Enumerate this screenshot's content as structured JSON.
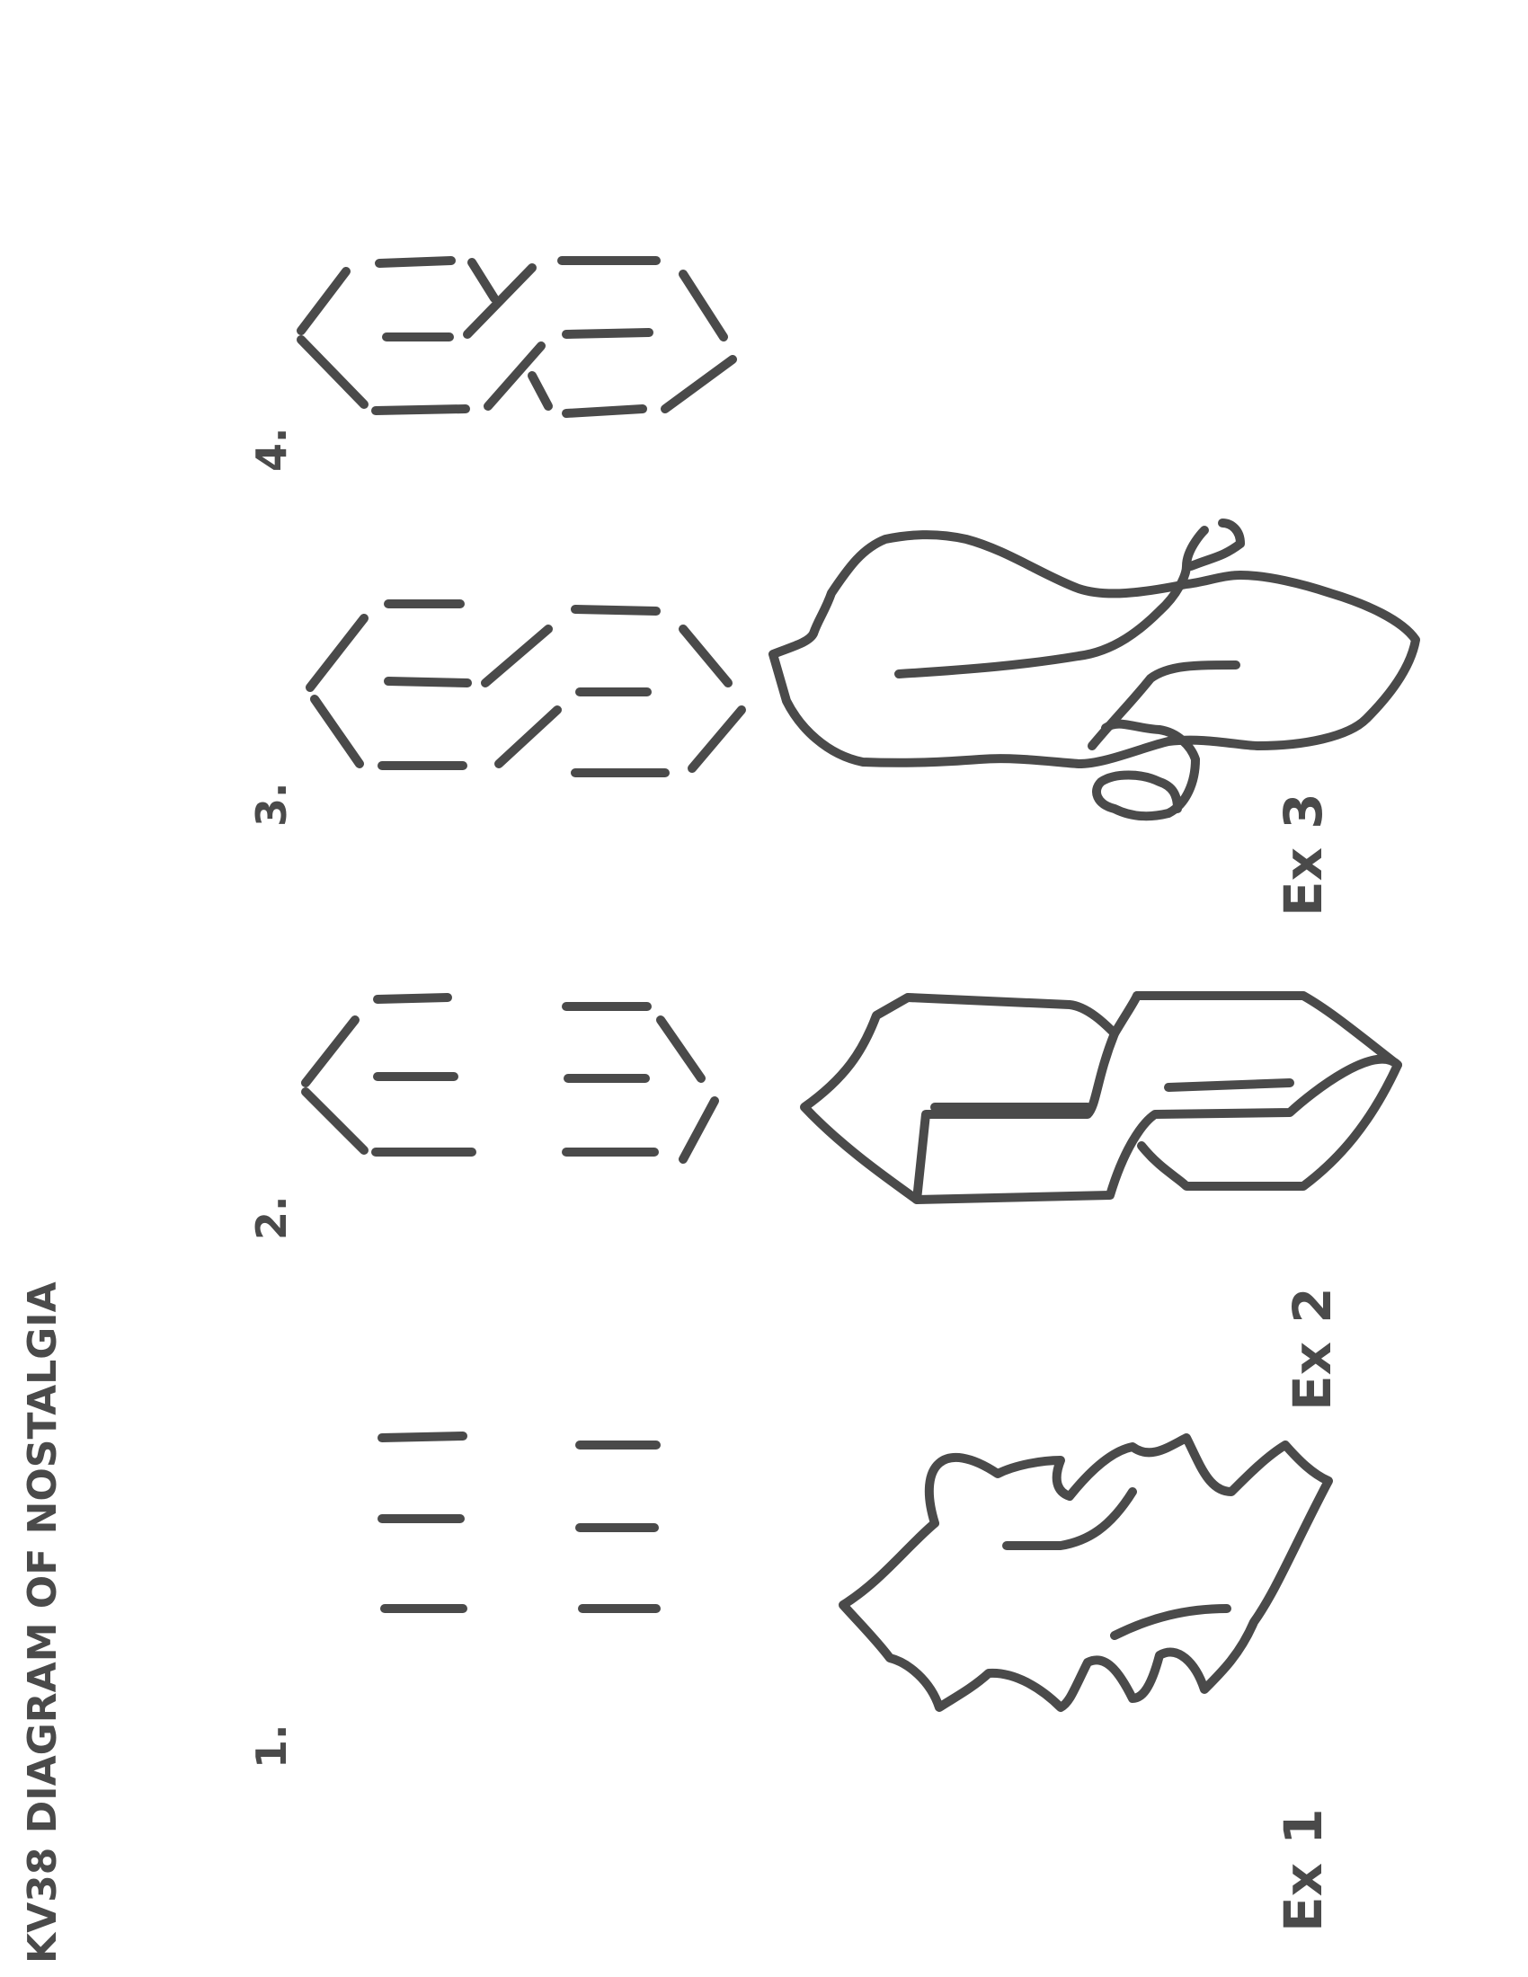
{
  "title": "KV38 DIAGRAM OF NOSTALGIA",
  "steps": [
    {
      "label": "1."
    },
    {
      "label": "2."
    },
    {
      "label": "3."
    },
    {
      "label": "4."
    }
  ],
  "examples": [
    {
      "label": "Ex 1"
    },
    {
      "label": "Ex 2"
    },
    {
      "label": "Ex 3"
    }
  ],
  "colors": {
    "ink": "#4a4a4a",
    "paper": "#ffffff"
  }
}
